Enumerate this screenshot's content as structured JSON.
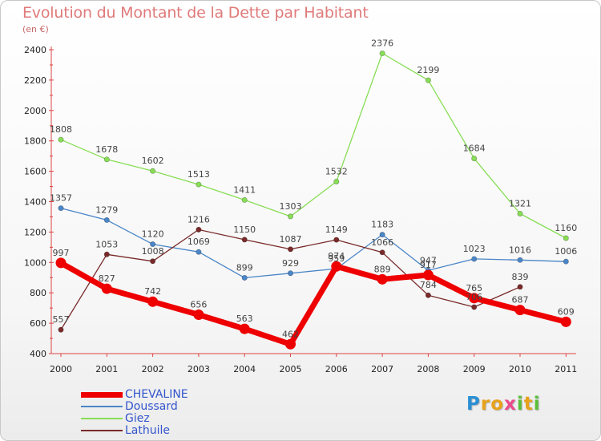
{
  "title": "Evolution du Montant de la Dette par Habitant",
  "unit": "(en €)",
  "logo": {
    "letters": [
      "P",
      "r",
      "o",
      "x",
      "i",
      "t",
      "i"
    ],
    "colors": [
      "#2a8fd4",
      "#e8a21a",
      "#e8a21a",
      "#ea4a8a",
      "#5bbf3a",
      "#e8a21a",
      "#5bbf3a"
    ]
  },
  "chart_data": {
    "type": "line",
    "title": "Evolution du Montant de la Dette par Habitant",
    "ylabel": "(en €)",
    "xlabel": "",
    "x": [
      "2000",
      "2001",
      "2002",
      "2003",
      "2004",
      "2005",
      "2006",
      "2007",
      "2008",
      "2009",
      "2010",
      "2011"
    ],
    "ylim": [
      400,
      2400
    ],
    "yticks": [
      400,
      600,
      800,
      1000,
      1200,
      1400,
      1600,
      1800,
      2000,
      2200,
      2400
    ],
    "grid": false,
    "legend": "bottom-left",
    "series": [
      {
        "name": "CHEVALINE",
        "color": "#ee0000",
        "values": [
          997,
          827,
          742,
          656,
          563,
          462,
          974,
          889,
          917,
          765,
          687,
          609
        ],
        "labels": [
          "997",
          "827",
          "742",
          "656",
          "563",
          "462",
          "974",
          "889",
          "917",
          "765",
          "687",
          "609"
        ]
      },
      {
        "name": "Doussard",
        "color": "#4a86c8",
        "values": [
          1357,
          1279,
          1120,
          1069,
          899,
          929,
          959,
          1183,
          947,
          1023,
          1016,
          1006
        ],
        "labels": [
          "1357",
          "1279",
          "1120",
          "1069",
          "899",
          "929",
          "959",
          "1183",
          "947",
          "1023",
          "1016",
          "1006"
        ]
      },
      {
        "name": "Giez",
        "color": "#88dd55",
        "values": [
          1808,
          1678,
          1602,
          1513,
          1411,
          1303,
          1532,
          2376,
          2199,
          1684,
          1321,
          1160
        ],
        "labels": [
          "1808",
          "1678",
          "1602",
          "1513",
          "1411",
          "1303",
          "1532",
          "2376",
          "2199",
          "1684",
          "1321",
          "1160"
        ]
      },
      {
        "name": "Lathuile",
        "color": "#7a2a2a",
        "values": [
          557,
          1053,
          1008,
          1216,
          1150,
          1087,
          1149,
          1066,
          784,
          706,
          839,
          null
        ],
        "labels": [
          "557",
          "1053",
          "1008",
          "1216",
          "1150",
          "1087",
          "1149",
          "1066",
          "784",
          "706",
          "839",
          null
        ]
      }
    ]
  }
}
